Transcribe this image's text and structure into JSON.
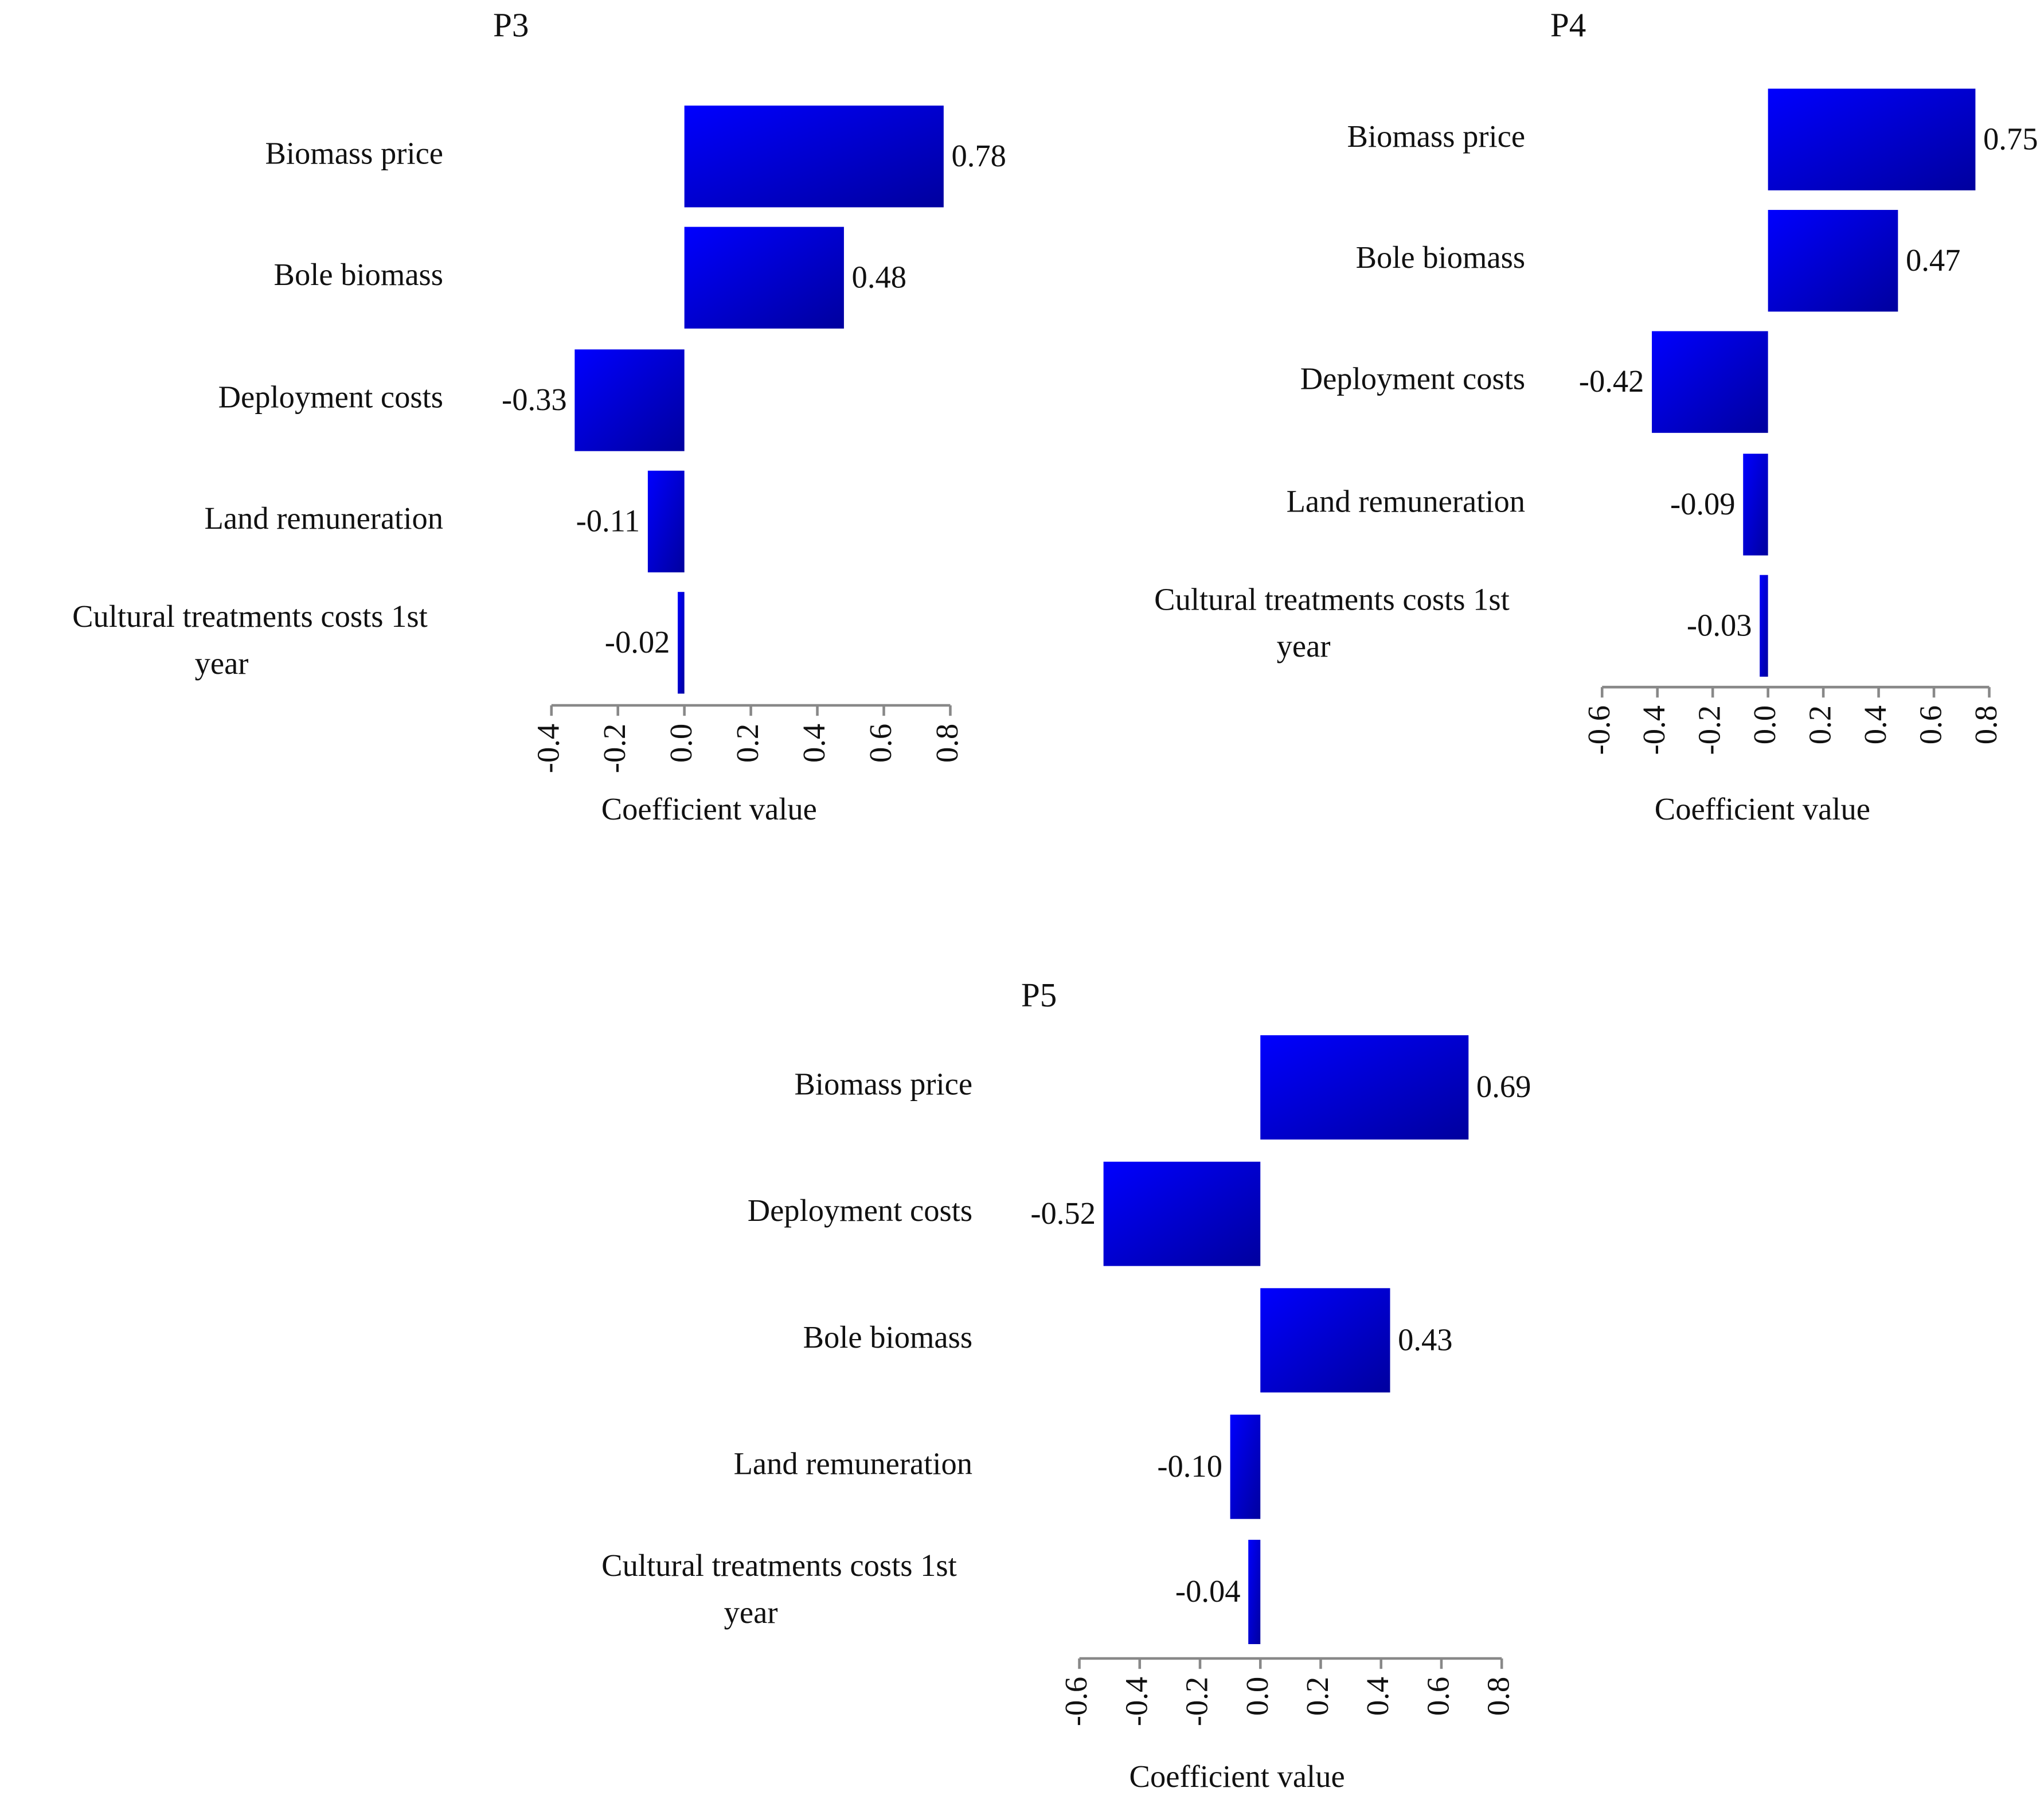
{
  "chart_data": [
    {
      "type": "bar",
      "orientation": "horizontal",
      "title": "P3",
      "xlabel": "Coefficient value",
      "categories": [
        "Biomass price",
        "Bole biomass",
        "Deployment costs",
        "Land remuneration",
        "Cultural treatments costs 1st year"
      ],
      "values": [
        0.78,
        0.48,
        -0.33,
        -0.11,
        -0.02
      ],
      "color": "#0000ff",
      "xlim": [
        -0.4,
        0.8
      ],
      "xticks": [
        -0.4,
        -0.2,
        {
          "value": 0,
          "label": "0.0"
        },
        0.2,
        0.4,
        0.6,
        0.8
      ]
    },
    {
      "type": "bar",
      "orientation": "horizontal",
      "title": "P4",
      "xlabel": "Coefficient value",
      "categories": [
        "Biomass price",
        "Bole biomass",
        "Deployment costs",
        "Land remuneration",
        "Cultural treatments costs 1st year"
      ],
      "values": [
        0.75,
        0.47,
        -0.42,
        -0.09,
        -0.03
      ],
      "color": "#0000ff",
      "xlim": [
        -0.6,
        0.8
      ],
      "xticks": [
        -0.6,
        -0.4,
        -0.2,
        {
          "value": 0,
          "label": "0.0"
        },
        0.2,
        0.4,
        0.6,
        0.8
      ]
    },
    {
      "type": "bar",
      "orientation": "horizontal",
      "title": "P5",
      "xlabel": "Coefficient value",
      "categories": [
        "Biomass price",
        "Deployment costs",
        "Bole biomass",
        "Land remuneration",
        "Cultural treatments costs 1st year"
      ],
      "values": [
        0.69,
        -0.52,
        0.43,
        -0.1,
        -0.04
      ],
      "value_labels": [
        "0.69",
        "-0.52",
        "0.43",
        "-0.10",
        "-0.04"
      ],
      "color": "#0000ff",
      "xlim": [
        -0.6,
        0.8
      ],
      "xticks": [
        -0.6,
        -0.4,
        -0.2,
        {
          "value": 0,
          "label": "0.0"
        },
        0.2,
        0.4,
        0.6,
        0.8
      ]
    }
  ]
}
